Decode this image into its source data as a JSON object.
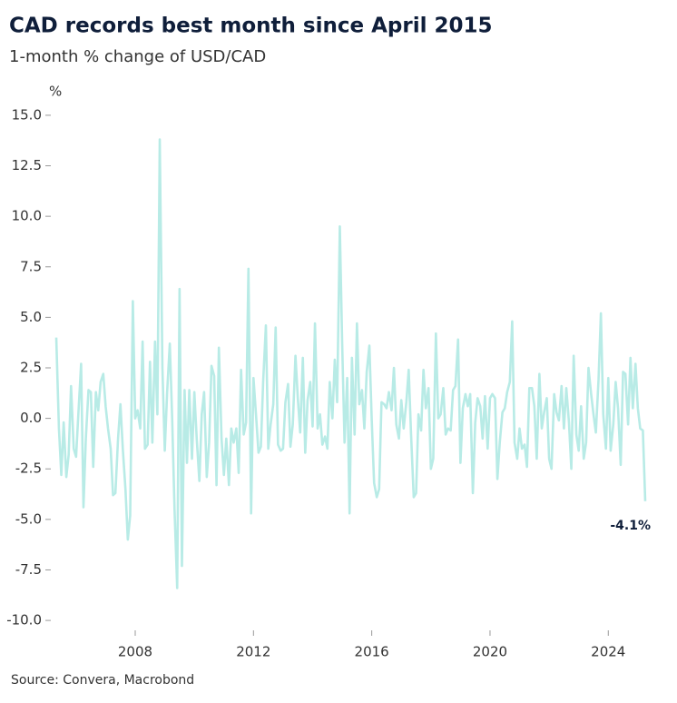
{
  "chart_data": {
    "type": "line",
    "title": "CAD records best month since April 2015",
    "subtitle": "1-month % change of USD/CAD",
    "y_label": "%",
    "source": "Source: Convera, Macrobond",
    "end_label": "-4.1%",
    "color": "#b8ebe6",
    "x": [
      2005.33,
      2005.42,
      2005.5,
      2005.58,
      2005.67,
      2005.75,
      2005.83,
      2005.92,
      2006,
      2006.08,
      2006.17,
      2006.25,
      2006.33,
      2006.42,
      2006.5,
      2006.58,
      2006.67,
      2006.75,
      2006.83,
      2006.92,
      2007,
      2007.08,
      2007.17,
      2007.25,
      2007.33,
      2007.42,
      2007.5,
      2007.58,
      2007.67,
      2007.75,
      2007.83,
      2007.92,
      2008,
      2008.08,
      2008.17,
      2008.25,
      2008.33,
      2008.42,
      2008.5,
      2008.58,
      2008.67,
      2008.75,
      2008.83,
      2008.92,
      2009,
      2009.08,
      2009.17,
      2009.25,
      2009.33,
      2009.42,
      2009.5,
      2009.58,
      2009.67,
      2009.75,
      2009.83,
      2009.92,
      2010,
      2010.08,
      2010.17,
      2010.25,
      2010.33,
      2010.42,
      2010.5,
      2010.58,
      2010.67,
      2010.75,
      2010.83,
      2010.92,
      2011,
      2011.08,
      2011.17,
      2011.25,
      2011.33,
      2011.42,
      2011.5,
      2011.58,
      2011.67,
      2011.75,
      2011.83,
      2011.92,
      2012,
      2012.08,
      2012.17,
      2012.25,
      2012.33,
      2012.42,
      2012.5,
      2012.58,
      2012.67,
      2012.75,
      2012.83,
      2012.92,
      2013,
      2013.08,
      2013.17,
      2013.25,
      2013.33,
      2013.42,
      2013.5,
      2013.58,
      2013.67,
      2013.75,
      2013.83,
      2013.92,
      2014,
      2014.08,
      2014.17,
      2014.25,
      2014.33,
      2014.42,
      2014.5,
      2014.58,
      2014.67,
      2014.75,
      2014.83,
      2014.92,
      2015,
      2015.08,
      2015.17,
      2015.25,
      2015.33,
      2015.42,
      2015.5,
      2015.58,
      2015.67,
      2015.75,
      2015.83,
      2015.92,
      2016,
      2016.08,
      2016.17,
      2016.25,
      2016.33,
      2016.42,
      2016.5,
      2016.58,
      2016.67,
      2016.75,
      2016.83,
      2016.92,
      2017,
      2017.08,
      2017.17,
      2017.25,
      2017.33,
      2017.42,
      2017.5,
      2017.58,
      2017.67,
      2017.75,
      2017.83,
      2017.92,
      2018,
      2018.08,
      2018.17,
      2018.25,
      2018.33,
      2018.42,
      2018.5,
      2018.58,
      2018.67,
      2018.75,
      2018.83,
      2018.92,
      2019,
      2019.08,
      2019.17,
      2019.25,
      2019.33,
      2019.42,
      2019.5,
      2019.58,
      2019.67,
      2019.75,
      2019.83,
      2019.92,
      2020,
      2020.08,
      2020.17,
      2020.25,
      2020.33,
      2020.42,
      2020.5,
      2020.58,
      2020.67,
      2020.75,
      2020.83,
      2020.92,
      2021,
      2021.08,
      2021.17,
      2021.25,
      2021.33,
      2021.42,
      2021.5,
      2021.58,
      2021.67,
      2021.75,
      2021.83,
      2021.92,
      2022,
      2022.08,
      2022.17,
      2022.25,
      2022.33,
      2022.42,
      2022.5,
      2022.58,
      2022.67,
      2022.75,
      2022.83,
      2022.92,
      2023,
      2023.08,
      2023.17,
      2023.25,
      2023.33,
      2023.42,
      2023.5,
      2023.58,
      2023.67,
      2023.75,
      2023.83,
      2023.92,
      2024,
      2024.08,
      2024.17,
      2024.25,
      2024.33,
      2024.42,
      2024.5,
      2024.58,
      2024.67,
      2024.75,
      2024.83,
      2024.92,
      2025,
      2025.08,
      2025.17,
      2025.25
    ],
    "values": [
      4.0,
      -0.5,
      -2.8,
      -0.2,
      -2.9,
      -1.8,
      1.6,
      -1.5,
      -1.9,
      0.3,
      2.7,
      -4.4,
      -1.0,
      1.4,
      1.3,
      -2.4,
      1.3,
      0.4,
      1.8,
      2.2,
      0.6,
      -0.5,
      -1.5,
      -3.8,
      -3.7,
      -1.0,
      0.7,
      -1.5,
      -3.5,
      -6.0,
      -4.8,
      5.8,
      0.0,
      0.4,
      -0.5,
      3.8,
      -1.5,
      -1.3,
      2.8,
      -1.2,
      3.8,
      0.2,
      13.8,
      2.5,
      -1.6,
      1.3,
      3.7,
      0.0,
      -4.5,
      -8.4,
      6.4,
      -7.3,
      1.4,
      -2.2,
      1.4,
      -2.0,
      1.3,
      -1.0,
      -3.1,
      0.2,
      1.3,
      -2.9,
      -1.2,
      2.6,
      2.1,
      -3.3,
      3.5,
      -1.0,
      -2.8,
      -1.0,
      -3.3,
      -0.5,
      -1.2,
      -0.5,
      -2.7,
      2.4,
      -0.8,
      -0.2,
      7.4,
      -4.7,
      2.0,
      0.3,
      -1.7,
      -1.4,
      1.9,
      4.6,
      -1.5,
      -0.3,
      0.7,
      4.5,
      -1.3,
      -1.6,
      -1.5,
      0.8,
      1.7,
      -1.4,
      -0.3,
      3.1,
      1.0,
      -0.7,
      3.0,
      -1.7,
      0.9,
      1.8,
      -0.4,
      4.7,
      -0.5,
      0.2,
      -1.3,
      -0.9,
      -1.5,
      1.8,
      0.0,
      2.9,
      0.8,
      9.5,
      3.7,
      -1.2,
      2.0,
      -4.7,
      3.0,
      -0.8,
      4.7,
      0.7,
      1.4,
      -0.5,
      2.3,
      3.6,
      -0.1,
      -3.2,
      -3.9,
      -3.5,
      0.8,
      0.7,
      0.5,
      1.3,
      0.4,
      2.5,
      -0.3,
      -1.0,
      0.9,
      -0.5,
      0.8,
      2.4,
      -0.8,
      -3.9,
      -3.7,
      0.2,
      -0.6,
      2.4,
      0.5,
      1.5,
      -2.5,
      -2.0,
      4.2,
      0.0,
      0.2,
      1.5,
      -0.8,
      -0.5,
      -0.6,
      1.4,
      1.6,
      3.9,
      -2.2,
      0.5,
      1.2,
      0.6,
      1.2,
      -3.7,
      -0.2,
      1.0,
      0.6,
      -1.0,
      1.1,
      -1.5,
      1.0,
      1.2,
      1.0,
      -3.0,
      -1.2,
      0.3,
      0.5,
      1.3,
      1.8,
      4.8,
      -1.2,
      -2.0,
      -0.5,
      -1.5,
      -1.3,
      -2.4,
      1.5,
      1.5,
      0.6,
      -2.0,
      2.2,
      -0.5,
      0.3,
      1.0,
      -2.0,
      -2.5,
      1.2,
      0.3,
      -0.1,
      1.6,
      -0.5,
      1.5,
      -0.2,
      -2.5,
      3.1,
      -0.8,
      -1.6,
      0.6,
      -2.0,
      -1.2,
      2.5,
      1.2,
      0.2,
      -0.7,
      1.9,
      5.2,
      0.2,
      -1.5,
      2.0,
      -1.6,
      -0.3,
      1.8,
      0.5,
      -2.3,
      2.3,
      2.2,
      -0.3,
      3.0,
      0.5,
      2.7,
      0.5,
      -0.5,
      -0.6,
      -4.1
    ],
    "xlim": [
      2005.33,
      2025.25
    ],
    "xticks": [
      2008,
      2012,
      2016,
      2020,
      2024
    ],
    "ylim": [
      -10.4,
      15.4
    ],
    "yticks": [
      {
        "value": -10,
        "label": "-10.0"
      },
      {
        "value": -7.5,
        "label": "-7.5"
      },
      {
        "value": -5,
        "label": "-5.0"
      },
      {
        "value": -2.5,
        "label": "-2.5"
      },
      {
        "value": 0,
        "label": "0.0"
      },
      {
        "value": 2.5,
        "label": "2.5"
      },
      {
        "value": 5,
        "label": "5.0"
      },
      {
        "value": 7.5,
        "label": "7.5"
      },
      {
        "value": 10,
        "label": "10.0"
      },
      {
        "value": 12.5,
        "label": "12.5"
      },
      {
        "value": 15,
        "label": "15.0"
      }
    ]
  }
}
